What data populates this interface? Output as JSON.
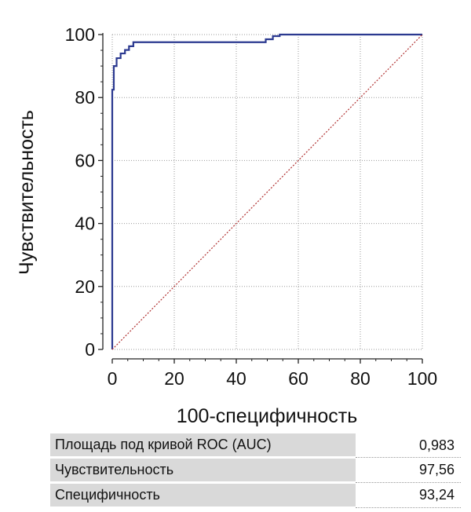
{
  "chart_data": {
    "type": "line",
    "title": "",
    "xlabel": "100-специфичность",
    "ylabel": "Чувствительность",
    "xlim": [
      0,
      100
    ],
    "ylim": [
      0,
      100
    ],
    "x_ticks": [
      "0",
      "20",
      "40",
      "60",
      "80",
      "100"
    ],
    "y_ticks": [
      "0",
      "20",
      "40",
      "60",
      "80",
      "100"
    ],
    "grid": true,
    "series": [
      {
        "name": "",
        "color": "#2b3990",
        "style": "solid",
        "x": [
          0,
          0,
          0.5,
          0.5,
          1.4,
          1.4,
          2.7,
          2.7,
          4.1,
          4.1,
          5.4,
          5.4,
          6.8,
          6.8,
          49.5,
          49.5,
          51.8,
          51.8,
          54,
          54,
          100
        ],
        "y": [
          0,
          82.5,
          82.5,
          90,
          90,
          92.5,
          92.5,
          94,
          94,
          95.1,
          95.1,
          96.3,
          96.3,
          97.56,
          97.56,
          98.5,
          98.5,
          99.5,
          99.5,
          100,
          100
        ]
      },
      {
        "name": "",
        "color": "#b03030",
        "style": "dotted",
        "x": [
          0,
          100
        ],
        "y": [
          0,
          100
        ]
      }
    ]
  },
  "stats": [
    {
      "label": "Площадь под кривой ROC (AUC)",
      "value": "0,983"
    },
    {
      "label": "Чувствительность",
      "value": "97,56"
    },
    {
      "label": "Специфичность",
      "value": "93,24"
    }
  ]
}
